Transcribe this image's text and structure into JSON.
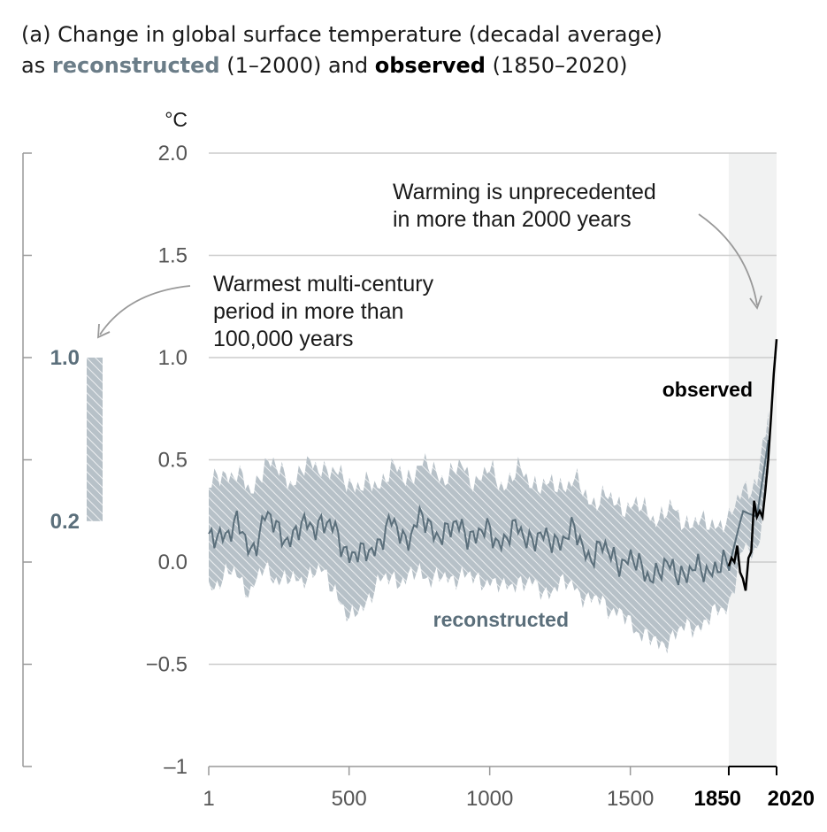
{
  "title_prefix": "(a) Change in global surface temperature (decadal average)",
  "title_as": "as",
  "title_rec_word": "reconstructed",
  "title_rec_range": "(1–2000) and",
  "title_obs_word": "observed",
  "title_obs_range": "(1850–2020)",
  "colors": {
    "reconstructed_line": "#5b6f7b",
    "reconstructed_band": "#b9c3ca",
    "observed": "#000000",
    "highlight": "#f1f2f2",
    "gridline": "#cccccc",
    "axis": "#999999"
  },
  "chart_data": {
    "type": "line",
    "ylabel": "°C",
    "ylim": [
      -1,
      2
    ],
    "xlim": [
      1,
      2020
    ],
    "yticks": [
      {
        "value": 2.0,
        "label": "2.0"
      },
      {
        "value": 1.5,
        "label": "1.5"
      },
      {
        "value": 1.0,
        "label": "1.0"
      },
      {
        "value": 0.5,
        "label": "0.5"
      },
      {
        "value": 0.0,
        "label": "0.0"
      },
      {
        "value": -0.5,
        "label": "−0.5"
      },
      {
        "value": -1,
        "label": "–1"
      }
    ],
    "xticks": [
      {
        "value": 1,
        "label": "1",
        "bold": false
      },
      {
        "value": 500,
        "label": "500",
        "bold": false
      },
      {
        "value": 1000,
        "label": "1000",
        "bold": false
      },
      {
        "value": 1500,
        "label": "1500",
        "bold": false
      },
      {
        "value": 1850,
        "label": "1850",
        "bold": true
      },
      {
        "value": 2020,
        "label": "2020",
        "bold": true
      }
    ],
    "highlight_range": [
      1850,
      2020
    ],
    "grid": true,
    "series": [
      {
        "name": "reconstructed",
        "x": [
          1,
          50,
          100,
          150,
          200,
          250,
          300,
          350,
          400,
          450,
          500,
          550,
          600,
          650,
          700,
          750,
          800,
          850,
          900,
          950,
          1000,
          1050,
          1100,
          1150,
          1200,
          1250,
          1300,
          1350,
          1400,
          1450,
          1500,
          1550,
          1600,
          1650,
          1700,
          1750,
          1800,
          1850,
          1900,
          1950,
          2000
        ],
        "y": [
          0.08,
          0.15,
          0.18,
          0.05,
          0.22,
          0.15,
          0.12,
          0.18,
          0.2,
          0.14,
          0.05,
          0.02,
          0.1,
          0.18,
          0.12,
          0.2,
          0.16,
          0.14,
          0.18,
          0.12,
          0.15,
          0.1,
          0.16,
          0.12,
          0.1,
          0.12,
          0.14,
          0.04,
          0.06,
          0.02,
          0.0,
          -0.04,
          -0.06,
          -0.02,
          -0.06,
          -0.04,
          -0.02,
          -0.03,
          0.25,
          0.22,
          0.68
        ],
        "lower": [
          -0.12,
          -0.08,
          -0.05,
          -0.15,
          -0.03,
          -0.08,
          -0.1,
          -0.06,
          -0.05,
          -0.12,
          -0.3,
          -0.2,
          -0.12,
          -0.06,
          -0.1,
          -0.04,
          -0.08,
          -0.09,
          -0.05,
          -0.1,
          -0.08,
          -0.14,
          -0.08,
          -0.12,
          -0.14,
          -0.12,
          -0.1,
          -0.2,
          -0.18,
          -0.25,
          -0.3,
          -0.35,
          -0.42,
          -0.35,
          -0.33,
          -0.3,
          -0.26,
          -0.2,
          0.05,
          0.05,
          0.55
        ],
        "upper": [
          0.36,
          0.42,
          0.45,
          0.32,
          0.5,
          0.44,
          0.4,
          0.46,
          0.48,
          0.42,
          0.4,
          0.36,
          0.38,
          0.46,
          0.4,
          0.48,
          0.44,
          0.42,
          0.46,
          0.4,
          0.44,
          0.38,
          0.44,
          0.4,
          0.36,
          0.38,
          0.4,
          0.3,
          0.32,
          0.28,
          0.28,
          0.25,
          0.22,
          0.25,
          0.2,
          0.18,
          0.2,
          0.18,
          0.38,
          0.36,
          0.82
        ]
      },
      {
        "name": "observed",
        "x": [
          1850,
          1860,
          1870,
          1880,
          1890,
          1900,
          1910,
          1920,
          1930,
          1940,
          1950,
          1960,
          1970,
          1980,
          1990,
          2000,
          2010,
          2020
        ],
        "y": [
          -0.02,
          0.02,
          0.0,
          0.08,
          -0.05,
          -0.08,
          -0.14,
          0.02,
          0.05,
          0.3,
          0.22,
          0.25,
          0.22,
          0.35,
          0.5,
          0.7,
          0.92,
          1.09
        ]
      }
    ],
    "paleo_range": {
      "label_top": "1.0",
      "label_bottom": "0.2",
      "low": 0.2,
      "high": 1.0
    },
    "annotations": [
      {
        "lines": [
          "Warming is unprecedented",
          "in more than 2000 years"
        ]
      },
      {
        "lines": [
          "Warmest multi-century",
          "period in more than",
          "100,000 years"
        ]
      },
      {
        "text": "observed"
      },
      {
        "text": "reconstructed"
      }
    ]
  }
}
